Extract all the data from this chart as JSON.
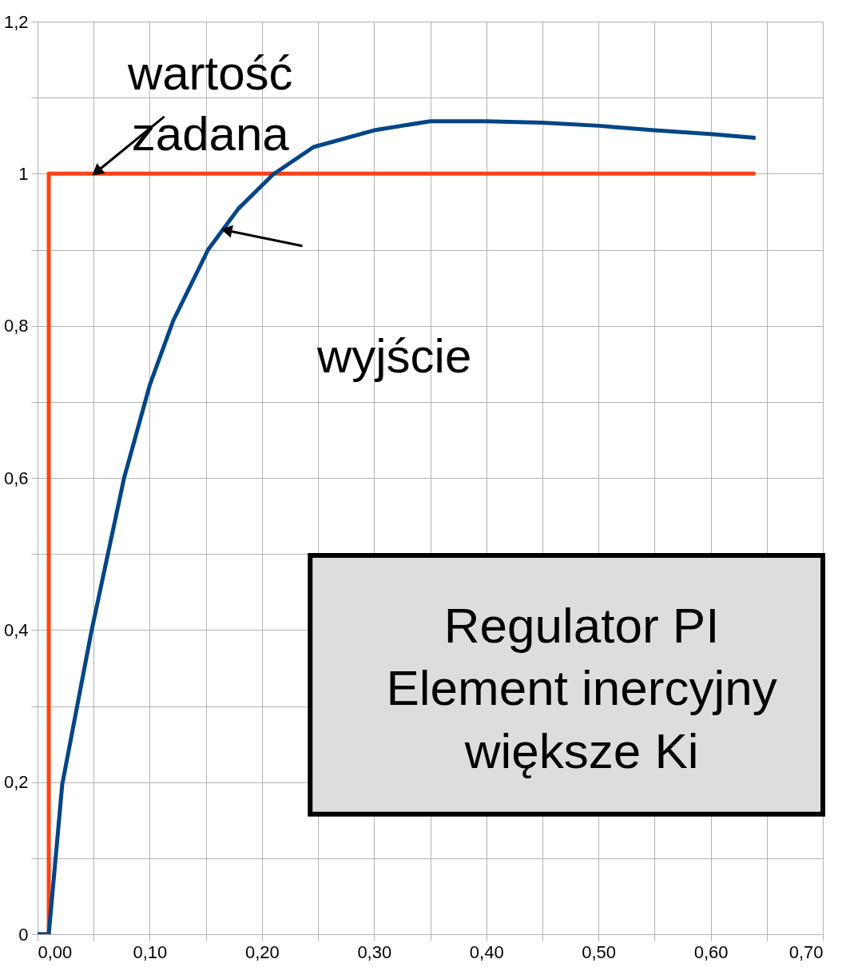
{
  "chart_data": {
    "type": "line",
    "series": [
      {
        "name": "wartość zadana",
        "color": "#ff4411",
        "x": [
          0,
          0.01,
          0.01,
          0.64
        ],
        "values": [
          0,
          0,
          1,
          1
        ]
      },
      {
        "name": "wyjście",
        "color": "#004586",
        "x": [
          0,
          0.01,
          0.022,
          0.048,
          0.077,
          0.1,
          0.121,
          0.152,
          0.179,
          0.21,
          0.246,
          0.3,
          0.35,
          0.4,
          0.45,
          0.5,
          0.55,
          0.6,
          0.64
        ],
        "values": [
          0,
          0,
          0.197,
          0.398,
          0.599,
          0.722,
          0.807,
          0.9,
          0.954,
          0.999,
          1.035,
          1.057,
          1.069,
          1.069,
          1.067,
          1.063,
          1.057,
          1.052,
          1.047
        ]
      }
    ],
    "annotations": [
      "Regulator PI",
      "Element inercyjny",
      "większe Ki"
    ],
    "xlim": [
      0,
      0.7
    ],
    "xticks": [
      {
        "value": 0,
        "label": "0,00"
      },
      {
        "value": 0.05,
        "label": null
      },
      {
        "value": 0.1,
        "label": "0,10"
      },
      {
        "value": 0.15,
        "label": null
      },
      {
        "value": 0.2,
        "label": "0,20"
      },
      {
        "value": 0.25,
        "label": null
      },
      {
        "value": 0.3,
        "label": "0,30"
      },
      {
        "value": 0.35,
        "label": null
      },
      {
        "value": 0.4,
        "label": "0,40"
      },
      {
        "value": 0.45,
        "label": null
      },
      {
        "value": 0.5,
        "label": "0,50"
      },
      {
        "value": 0.55,
        "label": null
      },
      {
        "value": 0.6,
        "label": "0,60"
      },
      {
        "value": 0.65,
        "label": null
      },
      {
        "value": 0.7,
        "label": "0,70"
      }
    ],
    "ylim": [
      0,
      1.2
    ],
    "yticks": [
      0,
      {
        "value": 0.1,
        "label": null
      },
      {
        "value": 0.2,
        "label": "0,2"
      },
      {
        "value": 0.3,
        "label": null
      },
      {
        "value": 0.4,
        "label": "0,4"
      },
      {
        "value": 0.5,
        "label": null
      },
      {
        "value": 0.6,
        "label": "0,6"
      },
      {
        "value": 0.7,
        "label": null
      },
      {
        "value": 0.8,
        "label": "0,8"
      },
      {
        "value": 0.9,
        "label": null
      },
      1,
      {
        "value": 1.1,
        "label": null
      },
      {
        "value": 1.2,
        "label": "1,2"
      }
    ],
    "grid": true,
    "legend": false,
    "marker": "none",
    "line_style": "solid"
  }
}
